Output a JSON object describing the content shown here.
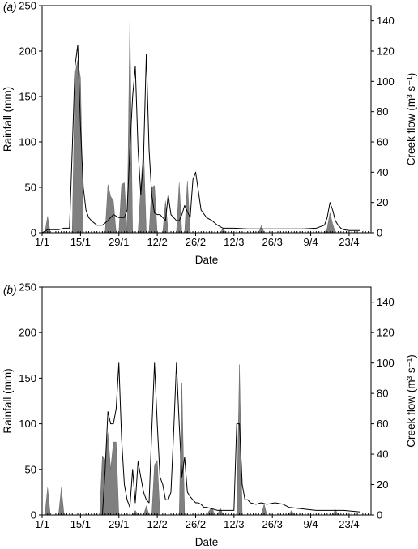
{
  "chart_data": [
    {
      "type": "area",
      "panel_label": "(a)",
      "xlabel": "Date",
      "ylabel_left": "Rainfall (mm)",
      "ylabel_right": "Creek flow (m³ s⁻¹)",
      "x_ticks": [
        "1/1",
        "15/1",
        "29/1",
        "12/2",
        "26/2",
        "12/3",
        "26/3",
        "9/4",
        "23/4"
      ],
      "ylim_left": [
        0,
        250
      ],
      "yticks_left": [
        0,
        50,
        100,
        150,
        200,
        250
      ],
      "ylim_right": [
        0,
        150
      ],
      "yticks_right": [
        0,
        20,
        40,
        60,
        80,
        100,
        120,
        140
      ],
      "grid": false,
      "series": [
        {
          "kind": "rainfall-area",
          "axis": "left",
          "color": "#808080",
          "day": [
            0,
            1,
            2,
            3,
            4,
            5,
            10,
            11,
            12,
            13,
            14,
            15,
            16,
            17,
            23,
            24,
            25,
            26,
            27,
            28,
            29,
            30,
            31,
            32,
            33,
            34,
            35,
            36,
            37,
            38,
            39,
            40,
            41,
            42,
            43,
            44,
            45,
            46,
            47,
            48,
            49,
            50,
            51,
            52,
            53,
            54,
            55,
            56,
            57,
            58,
            59,
            65,
            66,
            67,
            79,
            80,
            81,
            103,
            104,
            105,
            106,
            107,
            108
          ],
          "rain": [
            0,
            0,
            18,
            0,
            0,
            0,
            0,
            0,
            175,
            190,
            170,
            0,
            0,
            0,
            0,
            53,
            40,
            35,
            0,
            0,
            53,
            55,
            0,
            238,
            0,
            0,
            0,
            50,
            95,
            0,
            0,
            50,
            52,
            0,
            0,
            0,
            35,
            0,
            0,
            0,
            0,
            55,
            0,
            0,
            57,
            0,
            0,
            0,
            0,
            0,
            0,
            0,
            5,
            0,
            0,
            8,
            0,
            0,
            5,
            22,
            10,
            0,
            0
          ]
        },
        {
          "kind": "creek-flow-line",
          "axis": "right",
          "color": "#000000",
          "day": [
            0,
            2,
            4,
            6,
            8,
            10,
            11,
            12,
            13,
            14,
            15,
            16,
            17,
            18,
            20,
            22,
            24,
            26,
            28,
            30,
            31,
            32,
            33,
            34,
            35,
            36,
            37,
            38,
            39,
            40,
            41,
            42,
            43,
            44,
            45,
            46,
            47,
            48,
            49,
            50,
            51,
            52,
            53,
            54,
            55,
            56,
            58,
            60,
            62,
            64,
            66,
            67,
            70,
            75,
            80,
            85,
            90,
            95,
            100,
            103,
            104,
            105,
            106,
            107,
            108,
            109,
            110,
            112,
            114,
            116
          ],
          "flow": [
            0,
            2,
            2,
            2,
            3,
            3,
            55,
            110,
            124,
            70,
            30,
            15,
            10,
            8,
            5,
            5,
            8,
            12,
            10,
            10,
            15,
            55,
            90,
            110,
            55,
            25,
            50,
            118,
            55,
            25,
            13,
            12,
            12,
            10,
            8,
            25,
            12,
            10,
            8,
            8,
            12,
            18,
            14,
            10,
            35,
            40,
            15,
            10,
            8,
            5,
            3,
            3,
            3,
            2.5,
            2.5,
            2.5,
            2.5,
            2.5,
            3,
            5,
            10,
            20,
            15,
            8,
            5,
            3,
            2,
            1.5,
            1.5,
            1.5
          ]
        }
      ]
    },
    {
      "type": "area",
      "panel_label": "(b)",
      "xlabel": "Date",
      "ylabel_left": "Rainfall (mm)",
      "ylabel_right": "Creek flow (m³ s⁻¹)",
      "x_ticks": [
        "1/1",
        "15/1",
        "29/1",
        "12/2",
        "26/2",
        "12/3",
        "26/3",
        "9/4",
        "23/4"
      ],
      "ylim_left": [
        0,
        250
      ],
      "yticks_left": [
        0,
        50,
        100,
        150,
        200,
        250
      ],
      "ylim_right": [
        0,
        150
      ],
      "yticks_right": [
        0,
        20,
        40,
        60,
        80,
        100,
        120,
        140
      ],
      "grid": false,
      "series": [
        {
          "kind": "rainfall-area",
          "axis": "left",
          "color": "#808080",
          "day": [
            0,
            1,
            2,
            3,
            4,
            5,
            6,
            7,
            8,
            9,
            10,
            20,
            21,
            22,
            23,
            24,
            25,
            26,
            27,
            28,
            29,
            30,
            31,
            32,
            33,
            34,
            35,
            36,
            37,
            38,
            39,
            40,
            41,
            42,
            43,
            44,
            45,
            46,
            47,
            48,
            49,
            50,
            51,
            52,
            53,
            54,
            55,
            56,
            57,
            58,
            59,
            60,
            61,
            62,
            63,
            64,
            65,
            66,
            67,
            68,
            69,
            70,
            71,
            72,
            73,
            74,
            80,
            81,
            82,
            90,
            91,
            92,
            106,
            107,
            108
          ],
          "rain": [
            0,
            0,
            30,
            0,
            0,
            0,
            0,
            30,
            0,
            0,
            0,
            0,
            0,
            65,
            60,
            90,
            50,
            80,
            80,
            0,
            0,
            0,
            0,
            0,
            0,
            5,
            0,
            0,
            0,
            10,
            0,
            0,
            55,
            60,
            0,
            0,
            0,
            0,
            0,
            0,
            0,
            0,
            145,
            0,
            0,
            0,
            0,
            0,
            0,
            0,
            0,
            0,
            5,
            8,
            0,
            0,
            8,
            0,
            0,
            0,
            0,
            0,
            0,
            165,
            0,
            0,
            0,
            12,
            0,
            0,
            5,
            0,
            0,
            6,
            0
          ]
        },
        {
          "kind": "creek-flow-line",
          "axis": "right",
          "color": "#000000",
          "day": [
            0,
            5,
            10,
            15,
            20,
            22,
            23,
            24,
            25,
            26,
            27,
            28,
            29,
            30,
            31,
            32,
            33,
            34,
            35,
            36,
            37,
            38,
            39,
            40,
            41,
            42,
            43,
            44,
            45,
            46,
            47,
            48,
            49,
            50,
            51,
            52,
            53,
            54,
            55,
            56,
            57,
            58,
            59,
            60,
            62,
            64,
            66,
            68,
            70,
            71,
            72,
            73,
            74,
            75,
            76,
            78,
            80,
            82,
            85,
            88,
            90,
            95,
            100,
            105,
            110,
            116
          ],
          "flow": [
            0,
            0,
            0,
            0,
            0,
            0,
            30,
            68,
            60,
            60,
            70,
            100,
            50,
            20,
            10,
            5,
            30,
            8,
            35,
            25,
            15,
            10,
            8,
            55,
            100,
            60,
            25,
            20,
            10,
            10,
            15,
            55,
            100,
            60,
            25,
            38,
            15,
            12,
            10,
            8,
            8,
            7,
            5,
            5,
            4,
            3,
            3,
            3,
            3,
            60,
            60,
            20,
            10,
            10,
            8,
            7,
            8,
            7,
            8,
            7,
            5,
            4,
            3,
            3,
            3,
            2
          ]
        }
      ]
    }
  ]
}
